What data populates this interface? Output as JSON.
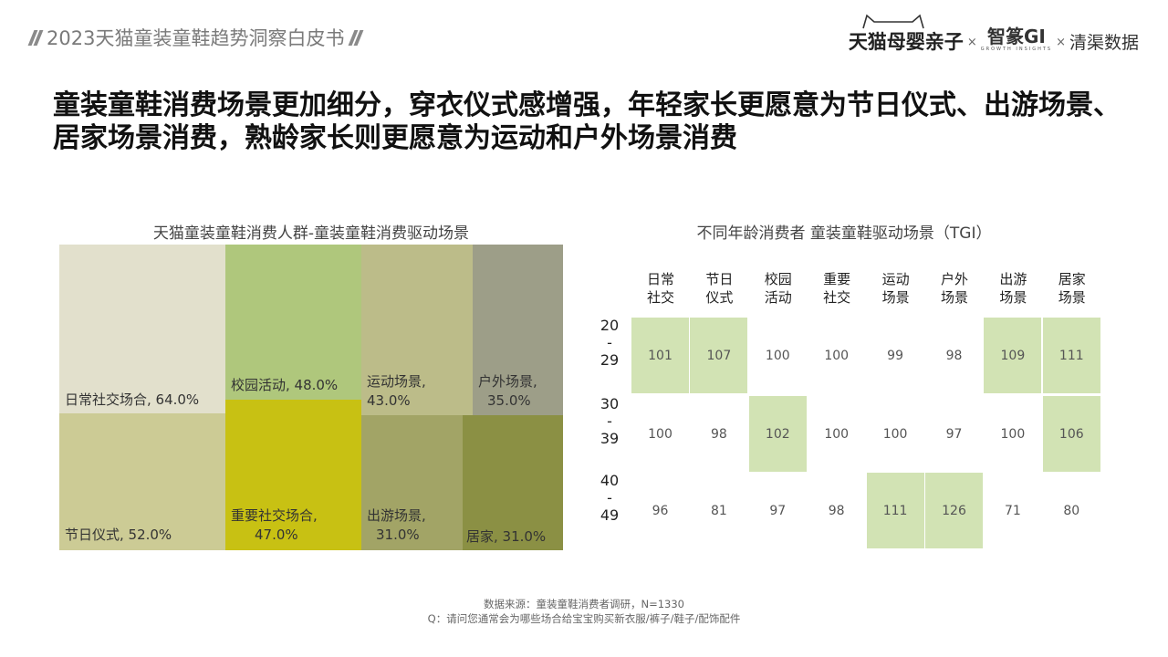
{
  "header": {
    "report_title": "2023天猫童装童鞋趋势洞察白皮书",
    "logo_tmall": "天猫母婴亲子",
    "logo_sep1": "×",
    "logo_zhixiang": "智篆GI",
    "logo_zhixiang_sub": "GROWTH INSIGHTS",
    "logo_sep2": "×",
    "logo_qingqu": "清渠数据"
  },
  "headline": "童装童鞋消费场景更加细分，穿衣仪式感增强，年轻家长更愿意为节日仪式、出游场景、居家场景消费，熟龄家长则更愿意为运动和户外场景消费",
  "chart_data": [
    {
      "type": "treemap",
      "title": "天猫童装童鞋消费人群-童装童鞋消费驱动场景",
      "items": [
        {
          "name": "日常社交场合",
          "value": 64.0,
          "label": "日常社交场合, 64.0%",
          "color": "#e2e0cc"
        },
        {
          "name": "节日仪式",
          "value": 52.0,
          "label": "节日仪式, 52.0%",
          "color": "#cccb95"
        },
        {
          "name": "校园活动",
          "value": 48.0,
          "label": "校园活动, 48.0%",
          "color": "#afc77c"
        },
        {
          "name": "重要社交场合",
          "value": 47.0,
          "label_line1": "重要社交场合,",
          "label_line2": "47.0%",
          "color": "#c8c113"
        },
        {
          "name": "运动场景",
          "value": 43.0,
          "label_line1": "运动场景,",
          "label_line2": "43.0%",
          "color": "#bcbc89"
        },
        {
          "name": "户外场景",
          "value": 35.0,
          "label_line1": "户外场景,",
          "label_line2": "35.0%",
          "color": "#9d9e88"
        },
        {
          "name": "出游场景",
          "value": 31.0,
          "label_line1": "出游场景,",
          "label_line2": "31.0%",
          "color": "#a2a466"
        },
        {
          "name": "居家",
          "value": 31.0,
          "label": "居家, 31.0%",
          "color": "#8b9044"
        }
      ]
    },
    {
      "type": "heatmap",
      "title": "不同年龄消费者 童装童鞋驱动场景（TGI）",
      "columns": [
        {
          "line1": "日常",
          "line2": "社交"
        },
        {
          "line1": "节日",
          "line2": "仪式"
        },
        {
          "line1": "校园",
          "line2": "活动"
        },
        {
          "line1": "重要",
          "line2": "社交"
        },
        {
          "line1": "运动",
          "line2": "场景"
        },
        {
          "line1": "户外",
          "line2": "场景"
        },
        {
          "line1": "出游",
          "line2": "场景"
        },
        {
          "line1": "居家",
          "line2": "场景"
        }
      ],
      "rows": [
        {
          "l1": "20",
          "l2": "-",
          "l3": "29",
          "values": [
            101,
            107,
            100,
            100,
            99,
            98,
            109,
            111
          ],
          "highlight": [
            true,
            true,
            false,
            false,
            false,
            false,
            true,
            true
          ]
        },
        {
          "l1": "30",
          "l2": "-",
          "l3": "39",
          "values": [
            100,
            98,
            102,
            100,
            100,
            97,
            100,
            106
          ],
          "highlight": [
            false,
            false,
            true,
            false,
            false,
            false,
            false,
            true
          ]
        },
        {
          "l1": "40",
          "l2": "-",
          "l3": "49",
          "values": [
            96,
            81,
            97,
            98,
            111,
            126,
            71,
            80
          ],
          "highlight": [
            false,
            false,
            false,
            false,
            true,
            true,
            false,
            false
          ]
        }
      ],
      "highlight_color": "#d2e3b4"
    }
  ],
  "footnote": {
    "source": "数据来源：童装童鞋消费者调研，N=1330",
    "question": "Q：请问您通常会为哪些场合给宝宝购买新衣服/裤子/鞋子/配饰配件"
  }
}
